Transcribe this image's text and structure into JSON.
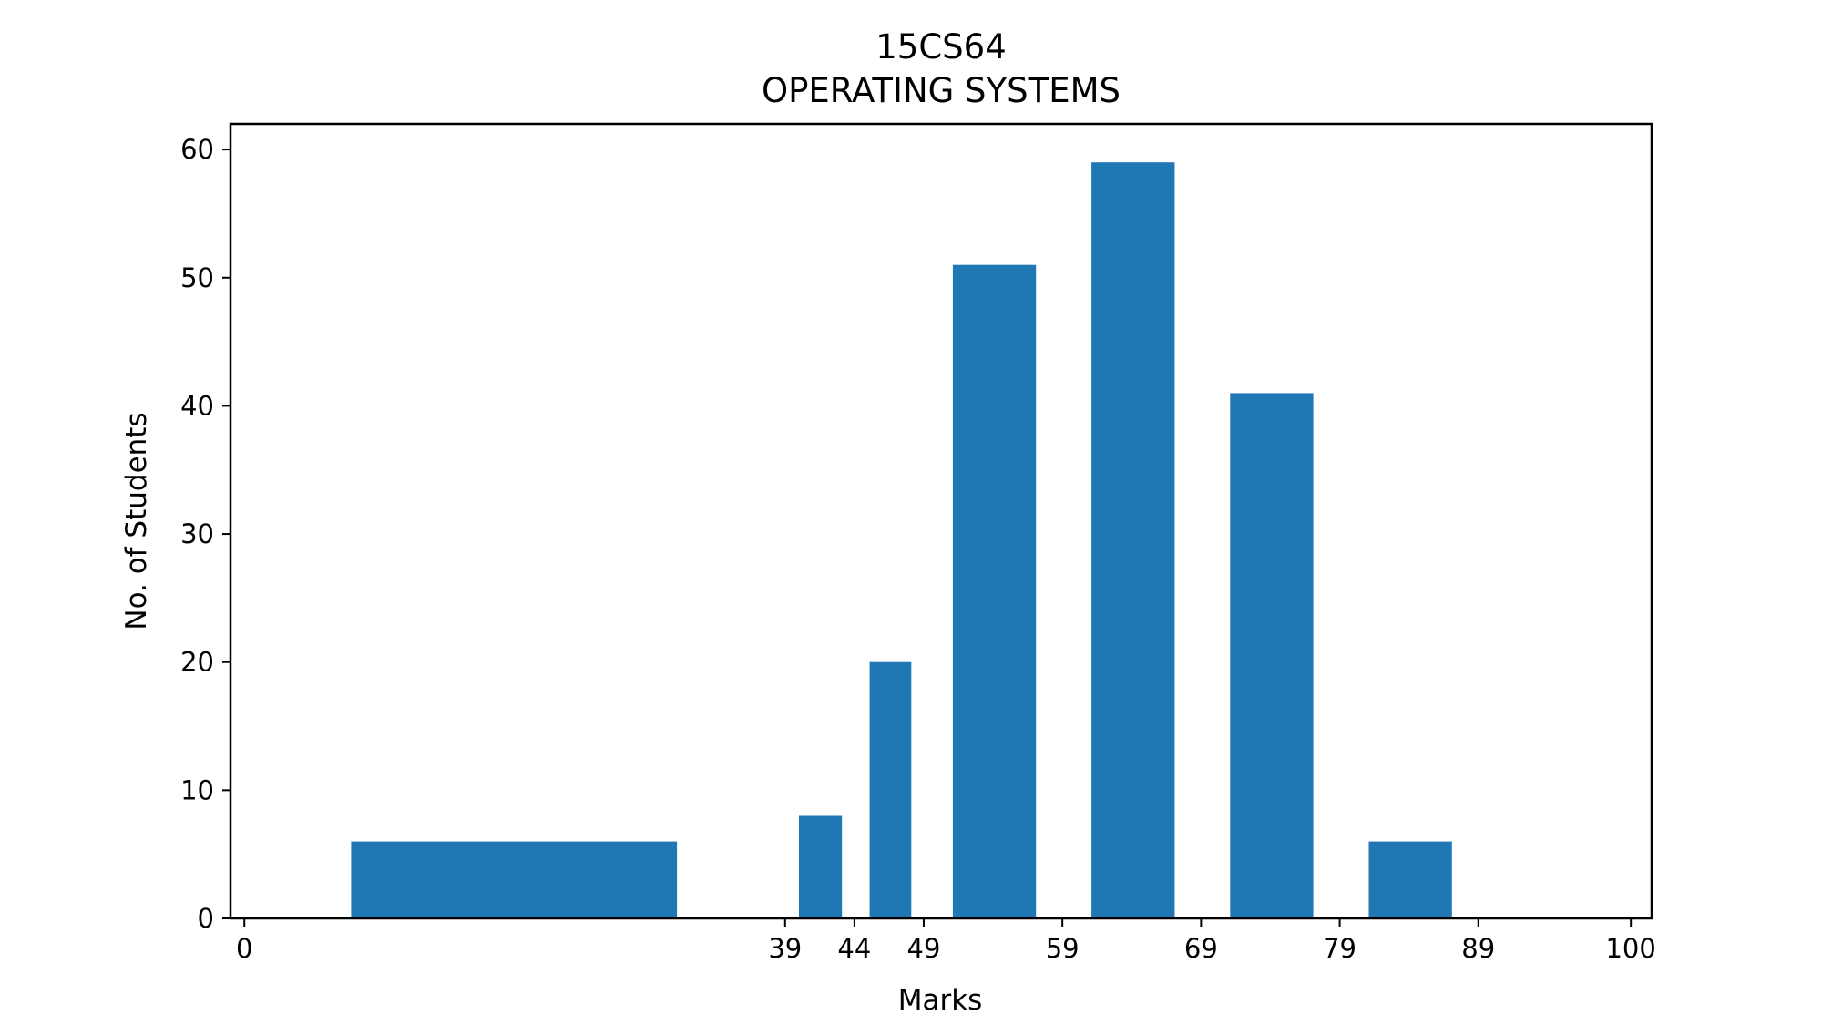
{
  "chart_data": {
    "type": "bar",
    "title": "15CS64",
    "subtitle": "OPERATING SYSTEMS",
    "xlabel": "Marks",
    "ylabel": "No. of Students",
    "xlim": [
      -1,
      101.5
    ],
    "ylim": [
      0,
      62
    ],
    "bars": [
      {
        "x_start": 7.7,
        "x_end": 31.2,
        "value": 6
      },
      {
        "x_start": 40.0,
        "x_end": 43.1,
        "value": 8
      },
      {
        "x_start": 45.1,
        "x_end": 48.1,
        "value": 20
      },
      {
        "x_start": 51.1,
        "x_end": 57.1,
        "value": 51
      },
      {
        "x_start": 61.1,
        "x_end": 67.1,
        "value": 59
      },
      {
        "x_start": 71.1,
        "x_end": 77.1,
        "value": 41
      },
      {
        "x_start": 81.1,
        "x_end": 87.1,
        "value": 6
      }
    ],
    "xticks": [
      0,
      39,
      44,
      49,
      59,
      69,
      79,
      89,
      100
    ],
    "yticks": [
      0,
      10,
      20,
      30,
      40,
      50,
      60
    ],
    "bar_color": "#1f77b4",
    "grid": false,
    "legend": "none"
  }
}
